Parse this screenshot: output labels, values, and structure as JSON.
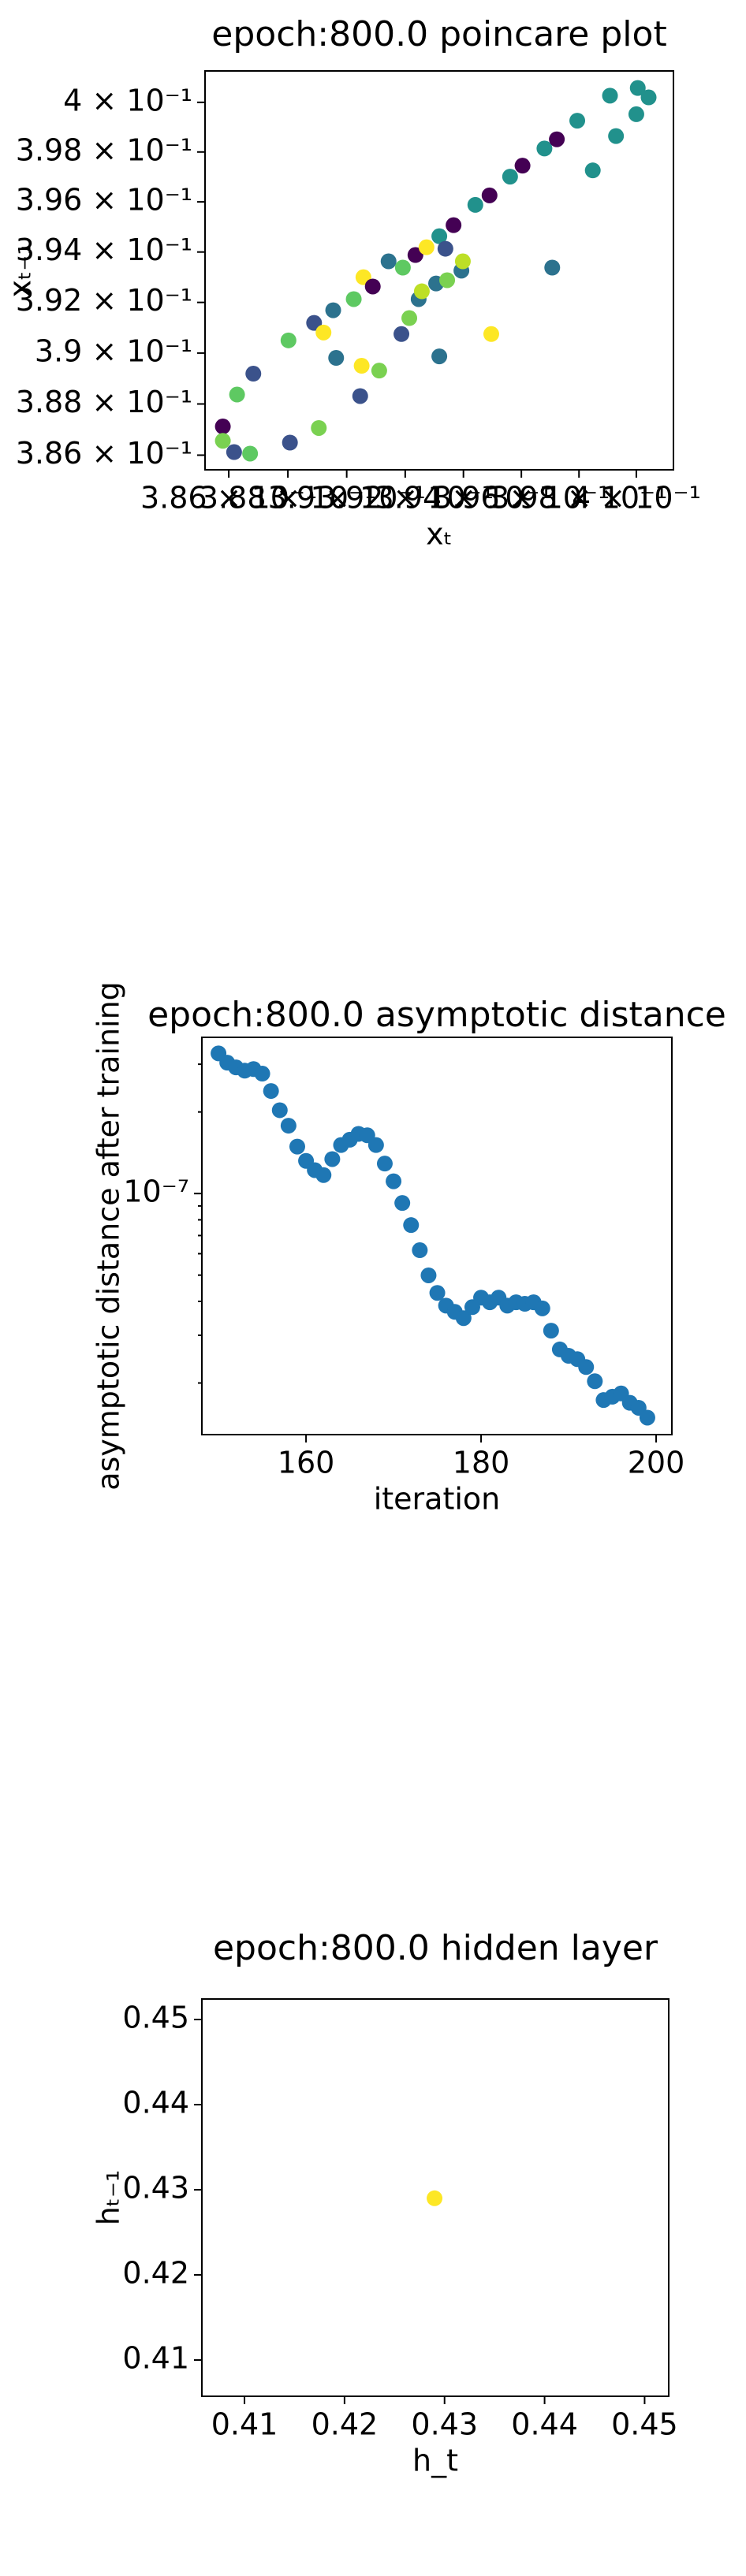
{
  "chart_data": [
    {
      "type": "scatter",
      "title": "epoch:800.0 poincare plot",
      "xlabel": "xₜ",
      "ylabel": "xₜ₋₁",
      "xlog": true,
      "ylog": true,
      "xlim": [
        0.3852,
        0.4013
      ],
      "ylim": [
        0.38543,
        0.40127
      ],
      "xticks": [
        {
          "value": 0.386,
          "label": "3.86 × 10⁻¹"
        },
        {
          "value": 0.388,
          "label": "3.88 × 10⁻¹"
        },
        {
          "value": 0.39,
          "label": "3.9 × 10⁻¹"
        },
        {
          "value": 0.392,
          "label": "3.92 × 10⁻¹"
        },
        {
          "value": 0.394,
          "label": "3.94 × 10⁻¹"
        },
        {
          "value": 0.396,
          "label": "3.96 × 10⁻¹"
        },
        {
          "value": 0.398,
          "label": "3.98 × 10⁻¹"
        },
        {
          "value": 0.4,
          "label": "4 × 10⁻¹"
        }
      ],
      "yticks": [
        {
          "value": 0.386,
          "label": "3.86 × 10⁻¹"
        },
        {
          "value": 0.388,
          "label": "3.88 × 10⁻¹"
        },
        {
          "value": 0.39,
          "label": "3.9 × 10⁻¹"
        },
        {
          "value": 0.392,
          "label": "3.92 × 10⁻¹"
        },
        {
          "value": 0.394,
          "label": "3.94 × 10⁻¹"
        },
        {
          "value": 0.396,
          "label": "3.96 × 10⁻¹"
        },
        {
          "value": 0.398,
          "label": "3.98 × 10⁻¹"
        },
        {
          "value": 0.4,
          "label": "4 × 10⁻¹"
        }
      ],
      "x": [
        0.3858,
        0.3858,
        0.38618,
        0.38628,
        0.38672,
        0.38683,
        0.38802,
        0.38807,
        0.38889,
        0.38905,
        0.38921,
        0.38954,
        0.38964,
        0.39024,
        0.39046,
        0.39051,
        0.39057,
        0.39089,
        0.39111,
        0.39143,
        0.39187,
        0.39192,
        0.39214,
        0.39235,
        0.39246,
        0.39257,
        0.39273,
        0.39306,
        0.39317,
        0.39317,
        0.39338,
        0.39344,
        0.39366,
        0.39393,
        0.39398,
        0.39441,
        0.3949,
        0.39496,
        0.39561,
        0.39604,
        0.3968,
        0.39707,
        0.39723,
        0.39794,
        0.39848,
        0.39908,
        0.39929,
        0.4,
        0.40005,
        0.40043
      ],
      "values": [
        0.38712,
        0.38656,
        0.38612,
        0.38837,
        0.38606,
        0.38919,
        0.3905,
        0.38649,
        0.39119,
        0.38706,
        0.39081,
        0.39169,
        0.38981,
        0.39213,
        0.38831,
        0.3895,
        0.393,
        0.39263,
        0.38931,
        0.39363,
        0.39075,
        0.39338,
        0.39138,
        0.39388,
        0.39213,
        0.39244,
        0.39419,
        0.39275,
        0.39463,
        0.38987,
        0.39413,
        0.39288,
        0.39507,
        0.39326,
        0.39363,
        0.39588,
        0.39626,
        0.39075,
        0.39701,
        0.39745,
        0.39814,
        0.39338,
        0.39851,
        0.39926,
        0.39726,
        0.40027,
        0.39864,
        0.39952,
        0.40058,
        0.4002
      ],
      "colors": [
        "#440154",
        "#7ad151",
        "#3b528b",
        "#5ec962",
        "#5ec962",
        "#3b528b",
        "#5ec962",
        "#3b528b",
        "#3b528b",
        "#7ad151",
        "#fde725",
        "#2c728e",
        "#2c728e",
        "#5ec962",
        "#3b528b",
        "#fde725",
        "#fde725",
        "#440154",
        "#7ad151",
        "#2c728e",
        "#3b528b",
        "#5ec962",
        "#7ad151",
        "#440154",
        "#2c728e",
        "#bddf26",
        "#fde725",
        "#2c728e",
        "#21918c",
        "#2c728e",
        "#3b528b",
        "#7ad151",
        "#440154",
        "#2c728e",
        "#bddf26",
        "#21918c",
        "#440154",
        "#fde725",
        "#21918c",
        "#440154",
        "#21918c",
        "#2c728e",
        "#440154",
        "#21918c",
        "#21918c",
        "#21918c",
        "#21918c",
        "#21918c",
        "#21918c",
        "#21918c"
      ]
    },
    {
      "type": "scatter",
      "title": "epoch:800.0 asymptotic distance",
      "xlabel": "iteration",
      "ylabel": "asymptotic distance after training",
      "ylog": true,
      "color": "#1f77b4",
      "xlim": [
        148.1,
        201.8
      ],
      "ylim": [
        1.29e-08,
        3.77e-07
      ],
      "xticks": [
        160,
        180,
        200
      ],
      "yticks": [
        {
          "value": 1e-07,
          "label": "10⁻⁷"
        }
      ],
      "x": [
        150,
        151,
        152,
        153,
        154,
        155,
        156,
        157,
        158,
        159,
        160,
        161,
        162,
        163,
        164,
        165,
        166,
        167,
        168,
        169,
        170,
        171,
        172,
        173,
        174,
        175,
        176,
        177,
        178,
        179,
        180,
        181,
        182,
        183,
        184,
        185,
        186,
        187,
        188,
        189,
        190,
        191,
        192,
        193,
        194,
        195,
        196,
        197,
        198,
        199
      ],
      "values": [
        3.29e-07,
        3.04e-07,
        2.92e-07,
        2.84e-07,
        2.88e-07,
        2.77e-07,
        2.39e-07,
        2.03e-07,
        1.78e-07,
        1.49e-07,
        1.32e-07,
        1.22e-07,
        1.17e-07,
        1.34e-07,
        1.51e-07,
        1.58e-07,
        1.66e-07,
        1.64e-07,
        1.51e-07,
        1.29e-07,
        1.11e-07,
        9.23e-08,
        7.65e-08,
        6.18e-08,
        4.99e-08,
        4.3e-08,
        3.86e-08,
        3.66e-08,
        3.47e-08,
        3.81e-08,
        4.13e-08,
        3.97e-08,
        4.13e-08,
        3.86e-08,
        3.97e-08,
        3.92e-08,
        3.97e-08,
        3.77e-08,
        3.12e-08,
        2.66e-08,
        2.52e-08,
        2.45e-08,
        2.29e-08,
        2.03e-08,
        1.73e-08,
        1.78e-08,
        1.83e-08,
        1.69e-08,
        1.62e-08,
        1.49e-08
      ]
    },
    {
      "type": "scatter",
      "title": "epoch:800.0 hidden layer",
      "xlabel": "h_t",
      "ylabel": "hₜ₋₁",
      "color": "#fde725",
      "xlim": [
        0.40574,
        0.45241
      ],
      "ylim": [
        0.40574,
        0.45241
      ],
      "xticks": [
        0.41,
        0.42,
        0.43,
        0.44,
        0.45
      ],
      "yticks": [
        0.41,
        0.42,
        0.43,
        0.44,
        0.45
      ],
      "x": [
        0.429
      ],
      "values": [
        0.429
      ]
    }
  ]
}
